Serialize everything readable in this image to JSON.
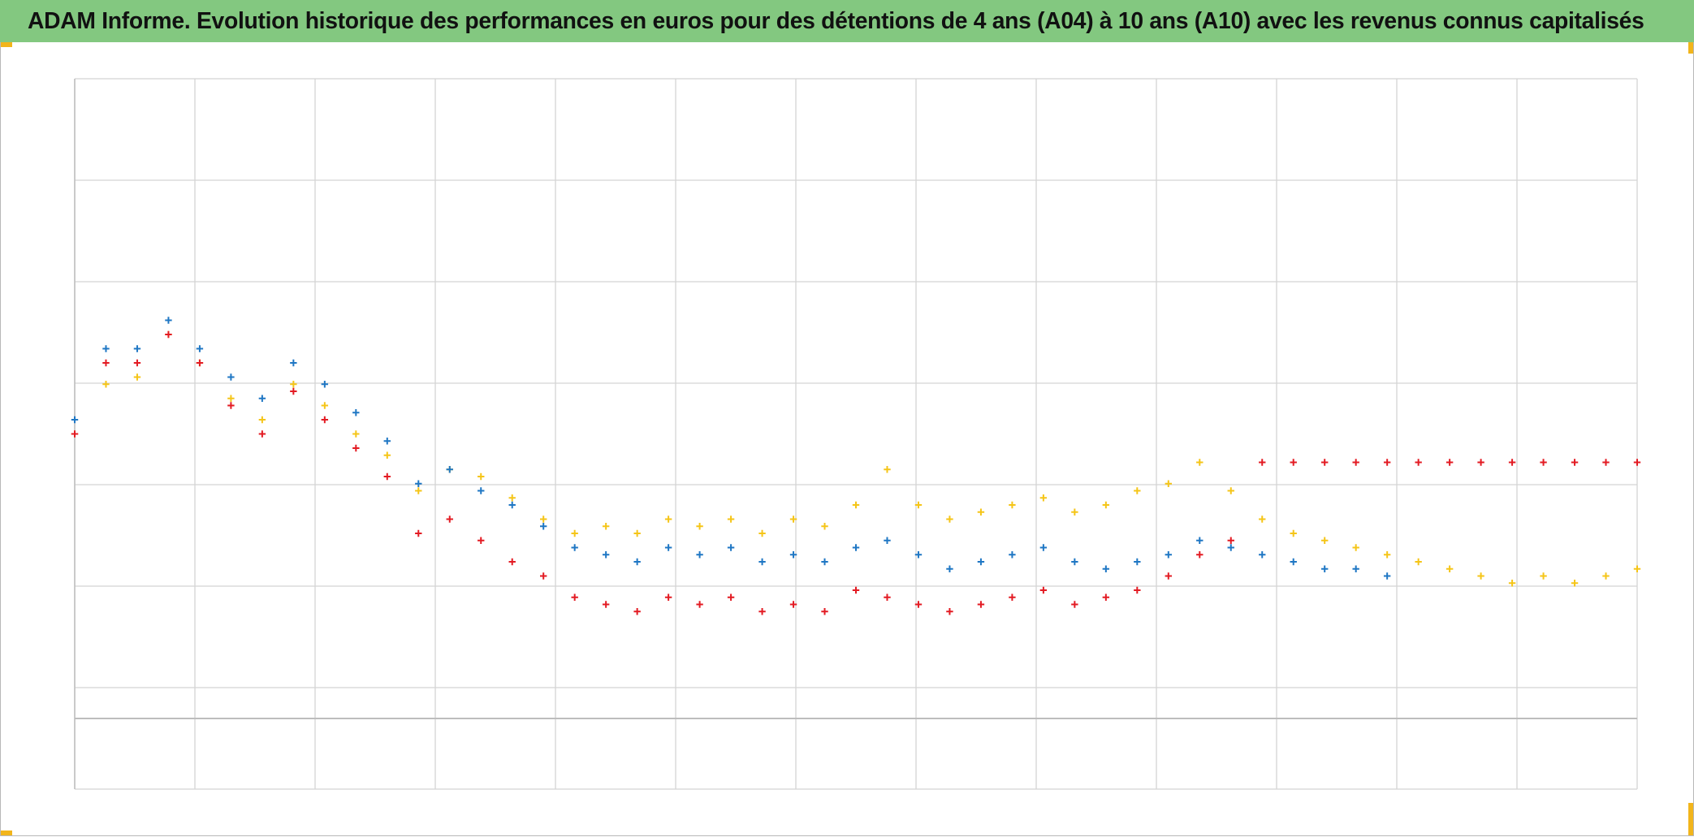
{
  "title": "ADAM Informe. Evolution historique des performances en euros pour des détentions de 4 ans (A04) à 10 ans (A10) avec les revenus connus capitalisés",
  "colors": {
    "title_bar": "#83c880",
    "grid": "#d4d4d4",
    "axis": "#bdbdbd",
    "corner_marks": "#f2b51b"
  },
  "chart_data": {
    "type": "scatter",
    "marker": "cross",
    "title": "ADAM Informe. Evolution historique des performances en euros pour des détentions de 4 ans (A04) à 10 ans (A10) avec les revenus connus capitalisés",
    "xlabel": "",
    "ylabel": "",
    "grid": true,
    "legend": "none",
    "axis_labels_visible": false,
    "series": [
      {
        "color": "#f5c518",
        "points": [
          [
            0.0,
            0.5
          ],
          [
            0.02,
            0.57
          ],
          [
            0.04,
            0.58
          ],
          [
            0.06,
            0.64
          ],
          [
            0.08,
            0.6
          ],
          [
            0.1,
            0.55
          ],
          [
            0.12,
            0.52
          ],
          [
            0.14,
            0.57
          ],
          [
            0.16,
            0.54
          ],
          [
            0.18,
            0.5
          ],
          [
            0.2,
            0.47
          ],
          [
            0.22,
            0.42
          ],
          [
            0.24,
            0.45
          ],
          [
            0.26,
            0.44
          ],
          [
            0.28,
            0.41
          ],
          [
            0.3,
            0.38
          ],
          [
            0.32,
            0.36
          ],
          [
            0.34,
            0.37
          ],
          [
            0.36,
            0.36
          ],
          [
            0.38,
            0.38
          ],
          [
            0.4,
            0.37
          ],
          [
            0.42,
            0.38
          ],
          [
            0.44,
            0.36
          ],
          [
            0.46,
            0.38
          ],
          [
            0.48,
            0.37
          ],
          [
            0.5,
            0.4
          ],
          [
            0.52,
            0.45
          ],
          [
            0.54,
            0.4
          ],
          [
            0.56,
            0.38
          ],
          [
            0.58,
            0.39
          ],
          [
            0.6,
            0.4
          ],
          [
            0.62,
            0.41
          ],
          [
            0.64,
            0.39
          ],
          [
            0.66,
            0.4
          ],
          [
            0.68,
            0.42
          ],
          [
            0.7,
            0.43
          ],
          [
            0.72,
            0.46
          ],
          [
            0.74,
            0.42
          ],
          [
            0.76,
            0.38
          ],
          [
            0.78,
            0.36
          ],
          [
            0.8,
            0.35
          ],
          [
            0.82,
            0.34
          ],
          [
            0.84,
            0.33
          ],
          [
            0.86,
            0.32
          ],
          [
            0.88,
            0.31
          ],
          [
            0.9,
            0.3
          ],
          [
            0.92,
            0.29
          ],
          [
            0.94,
            0.3
          ],
          [
            0.96,
            0.29
          ],
          [
            0.98,
            0.3
          ],
          [
            1.0,
            0.31
          ]
        ]
      },
      {
        "color": "#1f77c4",
        "points": [
          [
            0.0,
            0.52
          ],
          [
            0.02,
            0.62
          ],
          [
            0.04,
            0.62
          ],
          [
            0.06,
            0.66
          ],
          [
            0.08,
            0.62
          ],
          [
            0.1,
            0.58
          ],
          [
            0.12,
            0.55
          ],
          [
            0.14,
            0.6
          ],
          [
            0.16,
            0.57
          ],
          [
            0.18,
            0.53
          ],
          [
            0.2,
            0.49
          ],
          [
            0.22,
            0.43
          ],
          [
            0.24,
            0.45
          ],
          [
            0.26,
            0.42
          ],
          [
            0.28,
            0.4
          ],
          [
            0.3,
            0.37
          ],
          [
            0.32,
            0.34
          ],
          [
            0.34,
            0.33
          ],
          [
            0.36,
            0.32
          ],
          [
            0.38,
            0.34
          ],
          [
            0.4,
            0.33
          ],
          [
            0.42,
            0.34
          ],
          [
            0.44,
            0.32
          ],
          [
            0.46,
            0.33
          ],
          [
            0.48,
            0.32
          ],
          [
            0.5,
            0.34
          ],
          [
            0.52,
            0.35
          ],
          [
            0.54,
            0.33
          ],
          [
            0.56,
            0.31
          ],
          [
            0.58,
            0.32
          ],
          [
            0.6,
            0.33
          ],
          [
            0.62,
            0.34
          ],
          [
            0.64,
            0.32
          ],
          [
            0.66,
            0.31
          ],
          [
            0.68,
            0.32
          ],
          [
            0.7,
            0.33
          ],
          [
            0.72,
            0.35
          ],
          [
            0.74,
            0.34
          ],
          [
            0.76,
            0.33
          ],
          [
            0.78,
            0.32
          ],
          [
            0.8,
            0.31
          ],
          [
            0.82,
            0.31
          ],
          [
            0.84,
            0.3
          ]
        ]
      },
      {
        "color": "#e31b23",
        "points": [
          [
            0.0,
            0.5
          ],
          [
            0.02,
            0.6
          ],
          [
            0.04,
            0.6
          ],
          [
            0.06,
            0.64
          ],
          [
            0.08,
            0.6
          ],
          [
            0.1,
            0.54
          ],
          [
            0.12,
            0.5
          ],
          [
            0.14,
            0.56
          ],
          [
            0.16,
            0.52
          ],
          [
            0.18,
            0.48
          ],
          [
            0.2,
            0.44
          ],
          [
            0.22,
            0.36
          ],
          [
            0.24,
            0.38
          ],
          [
            0.26,
            0.35
          ],
          [
            0.28,
            0.32
          ],
          [
            0.3,
            0.3
          ],
          [
            0.32,
            0.27
          ],
          [
            0.34,
            0.26
          ],
          [
            0.36,
            0.25
          ],
          [
            0.38,
            0.27
          ],
          [
            0.4,
            0.26
          ],
          [
            0.42,
            0.27
          ],
          [
            0.44,
            0.25
          ],
          [
            0.46,
            0.26
          ],
          [
            0.48,
            0.25
          ],
          [
            0.5,
            0.28
          ],
          [
            0.52,
            0.27
          ],
          [
            0.54,
            0.26
          ],
          [
            0.56,
            0.25
          ],
          [
            0.58,
            0.26
          ],
          [
            0.6,
            0.27
          ],
          [
            0.62,
            0.28
          ],
          [
            0.64,
            0.26
          ],
          [
            0.66,
            0.27
          ],
          [
            0.68,
            0.28
          ],
          [
            0.7,
            0.3
          ],
          [
            0.72,
            0.33
          ],
          [
            0.74,
            0.35
          ],
          [
            0.76,
            0.46
          ],
          [
            0.78,
            0.46
          ],
          [
            0.8,
            0.46
          ],
          [
            0.82,
            0.46
          ],
          [
            0.84,
            0.46
          ],
          [
            0.86,
            0.46
          ],
          [
            0.88,
            0.46
          ],
          [
            0.9,
            0.46
          ],
          [
            0.92,
            0.46
          ],
          [
            0.94,
            0.46
          ],
          [
            0.96,
            0.46
          ],
          [
            0.98,
            0.46
          ],
          [
            1.0,
            0.46
          ]
        ]
      }
    ]
  }
}
